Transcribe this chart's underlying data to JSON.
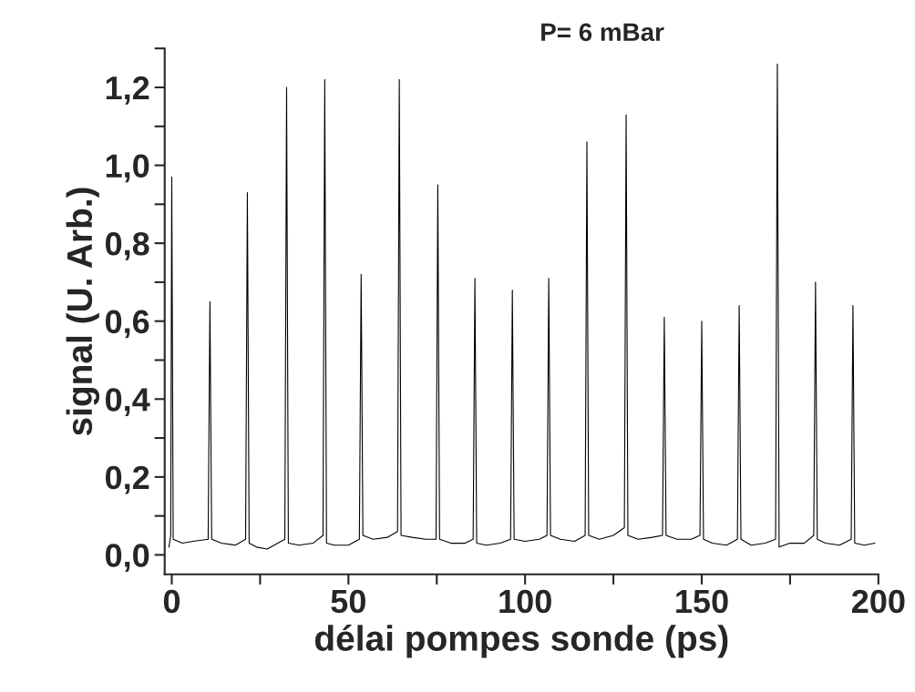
{
  "chart_data": {
    "type": "line",
    "title": "P= 6 mBar",
    "xlabel": "délai pompes sonde (ps)",
    "ylabel": "signal (U. Arb.)",
    "series": [
      {
        "color": "#000000",
        "x": [
          -0.8,
          -0.3,
          0,
          0.4,
          3,
          6,
          10.3,
          10.8,
          11.3,
          14,
          18,
          20.9,
          21.4,
          21.9,
          24,
          27,
          32.0,
          32.5,
          33.0,
          36,
          40,
          42.8,
          43.3,
          43.8,
          46,
          50,
          53.1,
          53.6,
          54.1,
          57,
          61,
          63.9,
          64.4,
          64.9,
          68,
          72,
          74.8,
          75.3,
          75.8,
          79,
          83,
          85.3,
          85.8,
          86.3,
          89,
          93,
          95.9,
          96.4,
          96.9,
          100,
          104,
          106.2,
          106.7,
          107.2,
          110,
          114,
          117.0,
          117.5,
          118.0,
          121,
          125,
          128.1,
          128.6,
          129.1,
          132,
          136,
          138.9,
          139.4,
          139.9,
          143,
          147,
          149.5,
          150.0,
          150.5,
          153,
          157,
          160.1,
          160.6,
          161.1,
          164,
          168,
          170.9,
          171.4,
          171.9,
          175,
          179,
          181.7,
          182.2,
          182.7,
          185,
          189,
          192.3,
          192.8,
          193.3,
          196,
          199
        ],
        "values": [
          0.02,
          0.05,
          0.97,
          0.04,
          0.03,
          0.035,
          0.04,
          0.65,
          0.04,
          0.03,
          0.025,
          0.04,
          0.93,
          0.03,
          0.02,
          0.015,
          0.04,
          1.2,
          0.03,
          0.025,
          0.03,
          0.05,
          1.22,
          0.03,
          0.025,
          0.025,
          0.04,
          0.72,
          0.05,
          0.04,
          0.045,
          0.06,
          1.22,
          0.05,
          0.045,
          0.04,
          0.04,
          0.95,
          0.04,
          0.03,
          0.03,
          0.04,
          0.71,
          0.03,
          0.025,
          0.03,
          0.04,
          0.68,
          0.04,
          0.035,
          0.04,
          0.05,
          0.71,
          0.05,
          0.04,
          0.035,
          0.05,
          1.06,
          0.05,
          0.04,
          0.05,
          0.07,
          1.13,
          0.05,
          0.04,
          0.045,
          0.05,
          0.61,
          0.05,
          0.04,
          0.04,
          0.05,
          0.6,
          0.04,
          0.03,
          0.025,
          0.04,
          0.64,
          0.04,
          0.025,
          0.03,
          0.04,
          1.26,
          0.02,
          0.03,
          0.03,
          0.05,
          0.7,
          0.04,
          0.03,
          0.025,
          0.04,
          0.64,
          0.03,
          0.025,
          0.03
        ]
      }
    ],
    "xlim": [
      -2,
      200
    ],
    "ylim": [
      -0.05,
      1.3
    ],
    "xticks": [
      0,
      {
        "value": 25,
        "label": null
      },
      50,
      {
        "value": 75,
        "label": null
      },
      100,
      {
        "value": 125,
        "label": null
      },
      150,
      {
        "value": 175,
        "label": null
      },
      200
    ],
    "yticks": [
      {
        "value": 0,
        "label": "0,0"
      },
      {
        "value": 0.1,
        "label": null
      },
      {
        "value": 0.2,
        "label": "0,2"
      },
      {
        "value": 0.3,
        "label": null
      },
      {
        "value": 0.4,
        "label": "0,4"
      },
      {
        "value": 0.5,
        "label": null
      },
      {
        "value": 0.6,
        "label": "0,6"
      },
      {
        "value": 0.7,
        "label": null
      },
      {
        "value": 0.8,
        "label": "0,8"
      },
      {
        "value": 0.9,
        "label": null
      },
      {
        "value": 1.0,
        "label": "1,0"
      },
      {
        "value": 1.1,
        "label": null
      },
      {
        "value": 1.2,
        "label": "1,2"
      },
      {
        "value": 1.3,
        "label": null
      }
    ],
    "grid": false,
    "legend": false,
    "marker": "none",
    "line_style": "solid"
  }
}
